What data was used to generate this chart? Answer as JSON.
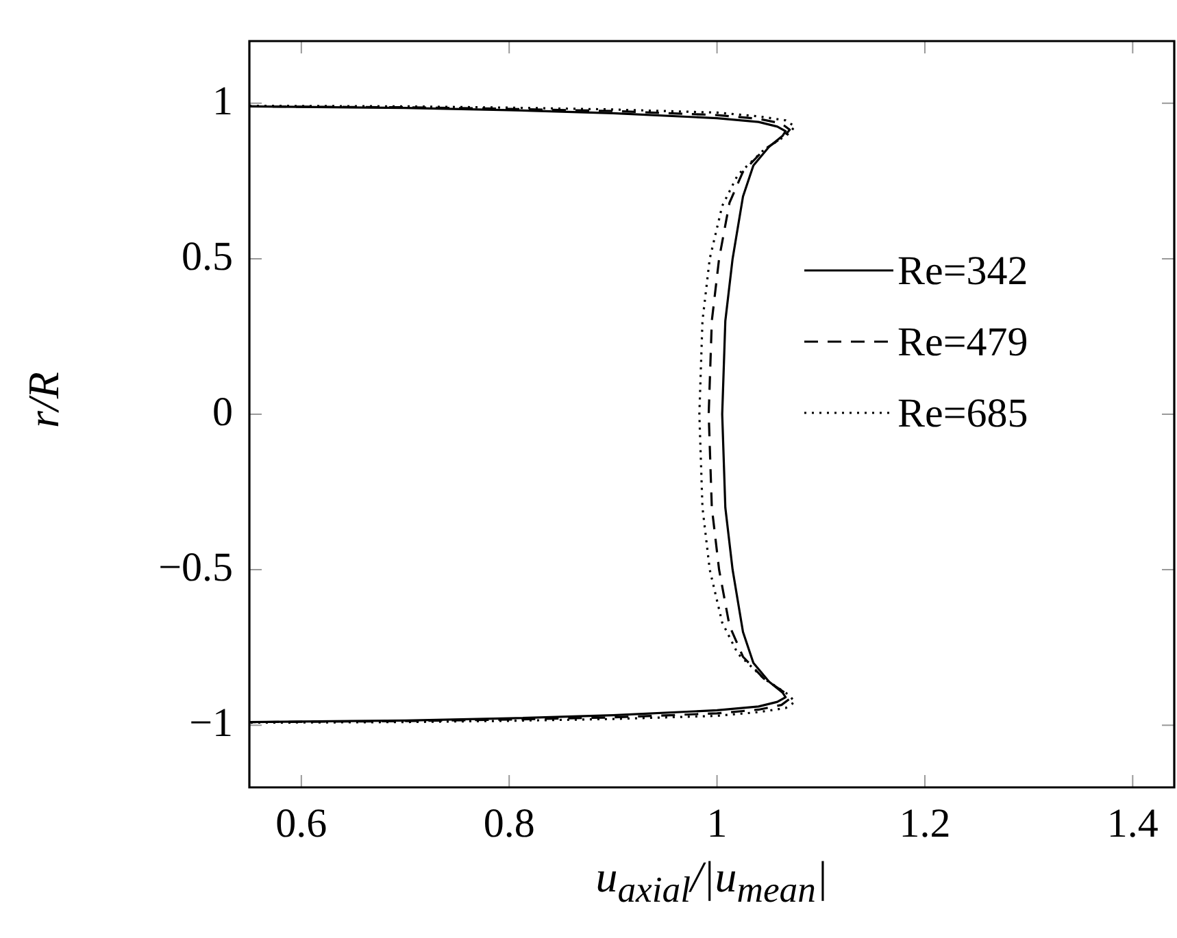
{
  "chart_data": {
    "type": "line",
    "xlabel": "u$_{axial}$/|u$_{mean}$|",
    "ylabel": "r/R",
    "xlim": [
      0.55,
      1.44
    ],
    "ylim": [
      -1.2,
      1.2
    ],
    "xticks": [
      0.6,
      0.8,
      1,
      1.2,
      1.4
    ],
    "yticks": [
      {
        "value": -1,
        "label": "−1"
      },
      {
        "value": -0.5,
        "label": "−0.5"
      },
      0,
      0.5,
      1
    ],
    "grid": false,
    "legend": "right",
    "marker": "none",
    "series": [
      {
        "name": "Re=342",
        "color": "#000000",
        "line_style": "solid",
        "x": [
          0.55,
          0.7,
          0.8,
          0.9,
          1.0,
          1.04,
          1.058,
          1.066,
          1.063,
          1.05,
          1.035,
          1.025,
          1.015,
          1.008,
          1.005,
          1.008,
          1.015,
          1.025,
          1.035,
          1.05,
          1.063,
          1.066,
          1.058,
          1.04,
          1.0,
          0.9,
          0.8,
          0.7,
          0.55
        ],
        "values": [
          0.99,
          0.985,
          0.978,
          0.968,
          0.952,
          0.94,
          0.925,
          0.91,
          0.895,
          0.86,
          0.8,
          0.7,
          0.5,
          0.3,
          0,
          -0.3,
          -0.5,
          -0.7,
          -0.8,
          -0.86,
          -0.895,
          -0.91,
          -0.925,
          -0.94,
          -0.952,
          -0.968,
          -0.978,
          -0.985,
          -0.99
        ]
      },
      {
        "name": "Re=479",
        "color": "#000000",
        "line_style": "dashed",
        "x": [
          0.55,
          0.7,
          0.8,
          0.9,
          1.0,
          1.04,
          1.062,
          1.07,
          1.065,
          1.045,
          1.025,
          1.012,
          1.002,
          0.995,
          0.992,
          0.995,
          1.002,
          1.012,
          1.025,
          1.045,
          1.065,
          1.07,
          1.062,
          1.04,
          1.0,
          0.9,
          0.8,
          0.7,
          0.55
        ],
        "values": [
          0.99,
          0.987,
          0.982,
          0.975,
          0.962,
          0.95,
          0.935,
          0.915,
          0.895,
          0.85,
          0.78,
          0.68,
          0.5,
          0.3,
          0,
          -0.3,
          -0.5,
          -0.68,
          -0.78,
          -0.85,
          -0.895,
          -0.915,
          -0.935,
          -0.95,
          -0.962,
          -0.975,
          -0.982,
          -0.987,
          -0.99
        ]
      },
      {
        "name": "Re=685",
        "color": "#000000",
        "line_style": "dotted",
        "x": [
          0.55,
          0.7,
          0.8,
          0.9,
          1.0,
          1.04,
          1.066,
          1.075,
          1.068,
          1.045,
          1.02,
          1.005,
          0.993,
          0.986,
          0.983,
          0.986,
          0.993,
          1.005,
          1.02,
          1.045,
          1.068,
          1.075,
          1.066,
          1.04,
          1.0,
          0.9,
          0.8,
          0.7,
          0.55
        ],
        "values": [
          0.992,
          0.99,
          0.986,
          0.98,
          0.97,
          0.958,
          0.945,
          0.925,
          0.9,
          0.85,
          0.77,
          0.67,
          0.5,
          0.3,
          0,
          -0.3,
          -0.5,
          -0.67,
          -0.77,
          -0.85,
          -0.9,
          -0.925,
          -0.945,
          -0.958,
          -0.97,
          -0.98,
          -0.986,
          -0.99,
          -0.992
        ]
      }
    ]
  }
}
